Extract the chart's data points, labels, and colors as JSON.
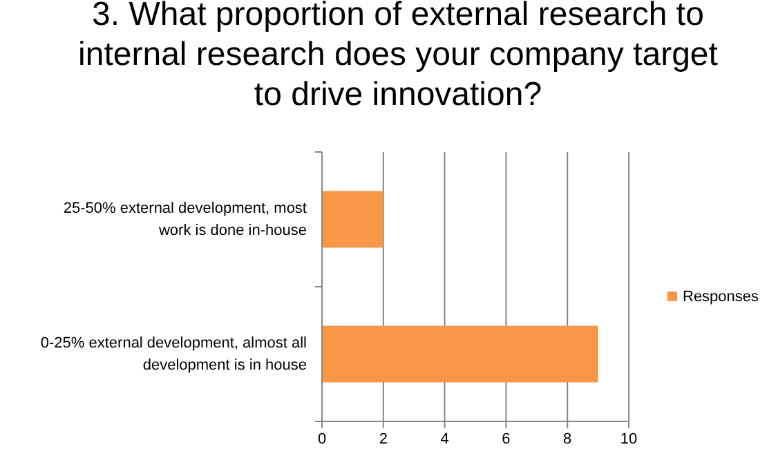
{
  "chart_data": {
    "type": "bar",
    "orientation": "horizontal",
    "title": "3. What proportion of external research to internal research does your company target to drive innovation?",
    "categories": [
      "25-50% external development, most work is done in-house",
      "0-25% external development, almost all development is in house"
    ],
    "series": [
      {
        "name": "Responses",
        "color": "#f79646",
        "values": [
          2,
          9
        ]
      }
    ],
    "xlim": [
      0,
      10
    ],
    "xticks": [
      0,
      2,
      4,
      6,
      8,
      10
    ],
    "grid": "x",
    "legend": "right"
  }
}
